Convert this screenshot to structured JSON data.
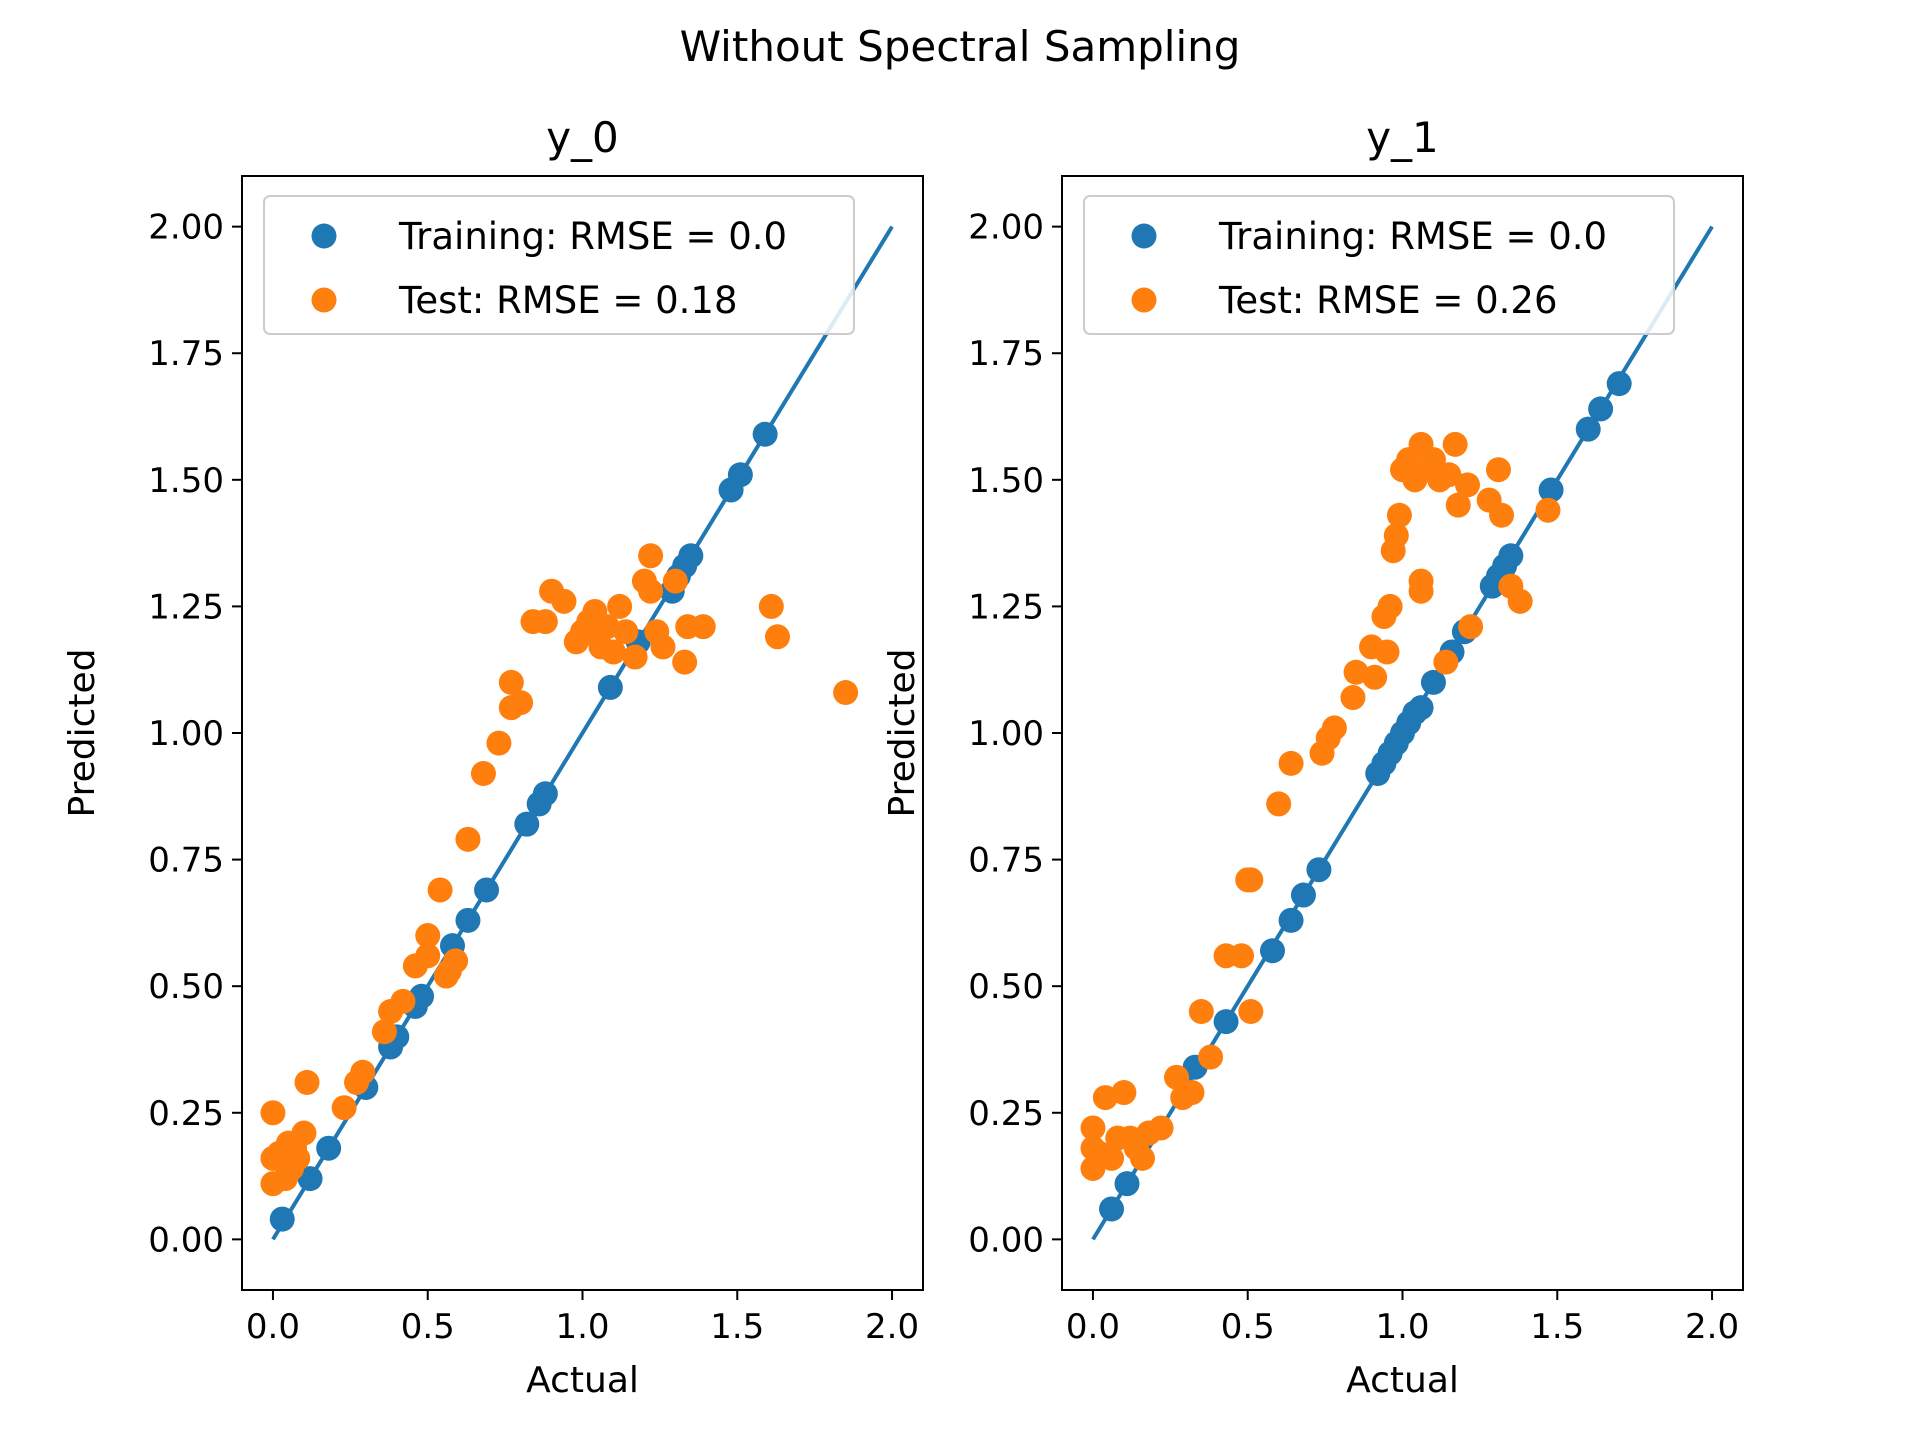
{
  "figure": {
    "suptitle": "Without Spectral Sampling"
  },
  "colors": {
    "training": "#1f77b4",
    "test": "#ff7f0e",
    "line": "#1f77b4"
  },
  "chart_data": [
    {
      "type": "scatter",
      "title": "y_0",
      "xlabel": "Actual",
      "ylabel": "Predicted",
      "xlim": [
        -0.1,
        2.1
      ],
      "ylim": [
        -0.1,
        2.1
      ],
      "xticks": [
        "0.0",
        "0.5",
        "1.0",
        "1.5",
        "2.0"
      ],
      "yticks": [
        "0.00",
        "0.25",
        "0.50",
        "0.75",
        "1.00",
        "1.25",
        "1.50",
        "1.75",
        "2.00"
      ],
      "legend": {
        "placement": "upper-left",
        "entries": [
          "Training: RMSE = 0.0",
          "Test: RMSE = 0.18"
        ]
      },
      "reference_line": {
        "from": [
          0,
          0
        ],
        "to": [
          2,
          2
        ]
      },
      "series": [
        {
          "name": "Training: RMSE = 0.0",
          "points": [
            [
              0.03,
              0.04
            ],
            [
              0.12,
              0.12
            ],
            [
              0.18,
              0.18
            ],
            [
              0.3,
              0.3
            ],
            [
              0.38,
              0.38
            ],
            [
              0.4,
              0.4
            ],
            [
              0.46,
              0.46
            ],
            [
              0.48,
              0.48
            ],
            [
              0.58,
              0.58
            ],
            [
              0.63,
              0.63
            ],
            [
              0.69,
              0.69
            ],
            [
              0.82,
              0.82
            ],
            [
              0.86,
              0.86
            ],
            [
              0.88,
              0.88
            ],
            [
              1.09,
              1.09
            ],
            [
              1.18,
              1.18
            ],
            [
              1.29,
              1.28
            ],
            [
              1.31,
              1.31
            ],
            [
              1.33,
              1.33
            ],
            [
              1.35,
              1.35
            ],
            [
              1.48,
              1.48
            ],
            [
              1.51,
              1.51
            ],
            [
              1.59,
              1.59
            ]
          ]
        },
        {
          "name": "Test: RMSE = 0.18",
          "points": [
            [
              0.0,
              0.25
            ],
            [
              0.0,
              0.16
            ],
            [
              0.0,
              0.11
            ],
            [
              0.02,
              0.17
            ],
            [
              0.04,
              0.12
            ],
            [
              0.05,
              0.19
            ],
            [
              0.06,
              0.14
            ],
            [
              0.07,
              0.18
            ],
            [
              0.08,
              0.16
            ],
            [
              0.1,
              0.21
            ],
            [
              0.11,
              0.31
            ],
            [
              0.23,
              0.26
            ],
            [
              0.27,
              0.31
            ],
            [
              0.29,
              0.33
            ],
            [
              0.36,
              0.41
            ],
            [
              0.38,
              0.45
            ],
            [
              0.42,
              0.47
            ],
            [
              0.46,
              0.54
            ],
            [
              0.5,
              0.56
            ],
            [
              0.5,
              0.6
            ],
            [
              0.54,
              0.69
            ],
            [
              0.56,
              0.52
            ],
            [
              0.57,
              0.53
            ],
            [
              0.59,
              0.55
            ],
            [
              0.63,
              0.79
            ],
            [
              0.68,
              0.92
            ],
            [
              0.73,
              0.98
            ],
            [
              0.77,
              1.05
            ],
            [
              0.77,
              1.1
            ],
            [
              0.8,
              1.06
            ],
            [
              0.84,
              1.22
            ],
            [
              0.88,
              1.22
            ],
            [
              0.9,
              1.28
            ],
            [
              0.94,
              1.26
            ],
            [
              0.98,
              1.18
            ],
            [
              1.0,
              1.2
            ],
            [
              1.02,
              1.22
            ],
            [
              1.04,
              1.24
            ],
            [
              1.05,
              1.19
            ],
            [
              1.06,
              1.17
            ],
            [
              1.08,
              1.21
            ],
            [
              1.1,
              1.16
            ],
            [
              1.12,
              1.25
            ],
            [
              1.14,
              1.2
            ],
            [
              1.17,
              1.15
            ],
            [
              1.2,
              1.3
            ],
            [
              1.22,
              1.28
            ],
            [
              1.22,
              1.35
            ],
            [
              1.24,
              1.2
            ],
            [
              1.26,
              1.17
            ],
            [
              1.3,
              1.3
            ],
            [
              1.33,
              1.14
            ],
            [
              1.34,
              1.21
            ],
            [
              1.39,
              1.21
            ],
            [
              1.61,
              1.25
            ],
            [
              1.63,
              1.19
            ],
            [
              1.85,
              1.08
            ]
          ]
        }
      ]
    },
    {
      "type": "scatter",
      "title": "y_1",
      "xlabel": "Actual",
      "ylabel": "Predicted",
      "xlim": [
        -0.1,
        2.1
      ],
      "ylim": [
        -0.1,
        2.1
      ],
      "xticks": [
        "0.0",
        "0.5",
        "1.0",
        "1.5",
        "2.0"
      ],
      "yticks": [
        "0.00",
        "0.25",
        "0.50",
        "0.75",
        "1.00",
        "1.25",
        "1.50",
        "1.75",
        "2.00"
      ],
      "legend": {
        "placement": "upper-left",
        "entries": [
          "Training: RMSE = 0.0",
          "Test: RMSE = 0.26"
        ]
      },
      "reference_line": {
        "from": [
          0,
          0
        ],
        "to": [
          2,
          2
        ]
      },
      "series": [
        {
          "name": "Training: RMSE = 0.0",
          "points": [
            [
              0.06,
              0.06
            ],
            [
              0.11,
              0.11
            ],
            [
              0.33,
              0.34
            ],
            [
              0.43,
              0.43
            ],
            [
              0.58,
              0.57
            ],
            [
              0.64,
              0.63
            ],
            [
              0.68,
              0.68
            ],
            [
              0.73,
              0.73
            ],
            [
              0.92,
              0.92
            ],
            [
              0.94,
              0.94
            ],
            [
              0.96,
              0.96
            ],
            [
              0.98,
              0.98
            ],
            [
              1.0,
              1.0
            ],
            [
              1.02,
              1.02
            ],
            [
              1.04,
              1.04
            ],
            [
              1.06,
              1.05
            ],
            [
              1.1,
              1.1
            ],
            [
              1.16,
              1.16
            ],
            [
              1.2,
              1.2
            ],
            [
              1.29,
              1.29
            ],
            [
              1.31,
              1.31
            ],
            [
              1.33,
              1.33
            ],
            [
              1.35,
              1.35
            ],
            [
              1.48,
              1.48
            ],
            [
              1.6,
              1.6
            ],
            [
              1.64,
              1.64
            ],
            [
              1.7,
              1.69
            ]
          ]
        },
        {
          "name": "Test: RMSE = 0.26",
          "points": [
            [
              0.0,
              0.22
            ],
            [
              0.0,
              0.18
            ],
            [
              0.0,
              0.14
            ],
            [
              0.02,
              0.17
            ],
            [
              0.04,
              0.28
            ],
            [
              0.06,
              0.16
            ],
            [
              0.08,
              0.2
            ],
            [
              0.1,
              0.29
            ],
            [
              0.12,
              0.2
            ],
            [
              0.14,
              0.18
            ],
            [
              0.16,
              0.16
            ],
            [
              0.18,
              0.21
            ],
            [
              0.22,
              0.22
            ],
            [
              0.27,
              0.32
            ],
            [
              0.29,
              0.28
            ],
            [
              0.32,
              0.29
            ],
            [
              0.35,
              0.45
            ],
            [
              0.38,
              0.36
            ],
            [
              0.43,
              0.56
            ],
            [
              0.48,
              0.56
            ],
            [
              0.5,
              0.71
            ],
            [
              0.51,
              0.45
            ],
            [
              0.51,
              0.71
            ],
            [
              0.6,
              0.86
            ],
            [
              0.64,
              0.94
            ],
            [
              0.74,
              0.96
            ],
            [
              0.76,
              0.99
            ],
            [
              0.78,
              1.01
            ],
            [
              0.84,
              1.07
            ],
            [
              0.85,
              1.12
            ],
            [
              0.91,
              1.11
            ],
            [
              0.9,
              1.17
            ],
            [
              0.95,
              1.16
            ],
            [
              0.94,
              1.23
            ],
            [
              0.96,
              1.25
            ],
            [
              0.97,
              1.36
            ],
            [
              0.98,
              1.39
            ],
            [
              0.99,
              1.43
            ],
            [
              1.0,
              1.52
            ],
            [
              1.02,
              1.54
            ],
            [
              1.04,
              1.5
            ],
            [
              1.06,
              1.57
            ],
            [
              1.07,
              1.52
            ],
            [
              1.1,
              1.54
            ],
            [
              1.12,
              1.5
            ],
            [
              1.15,
              1.51
            ],
            [
              1.17,
              1.57
            ],
            [
              1.18,
              1.45
            ],
            [
              1.21,
              1.49
            ],
            [
              1.06,
              1.28
            ],
            [
              1.06,
              1.3
            ],
            [
              1.22,
              1.21
            ],
            [
              1.28,
              1.46
            ],
            [
              1.31,
              1.52
            ],
            [
              1.32,
              1.43
            ],
            [
              1.35,
              1.29
            ],
            [
              1.38,
              1.26
            ],
            [
              1.47,
              1.44
            ],
            [
              1.14,
              1.14
            ]
          ]
        }
      ]
    }
  ]
}
